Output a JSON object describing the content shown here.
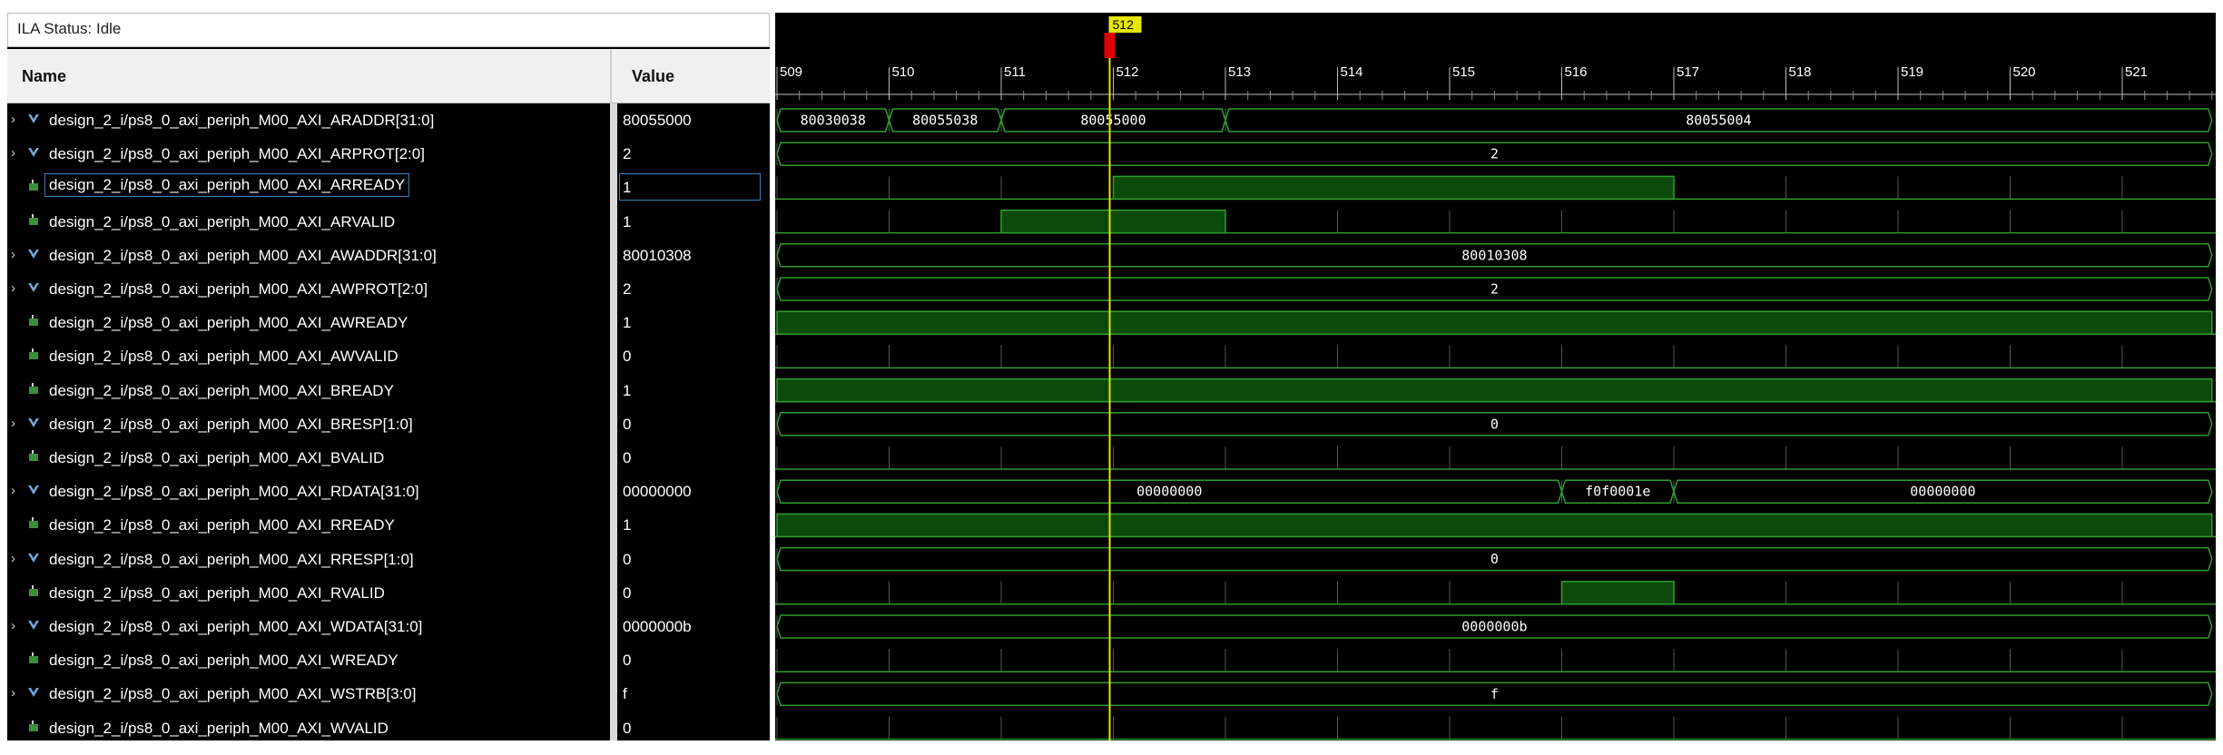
{
  "status": {
    "label": "ILA Status:",
    "value": "Idle"
  },
  "columns": {
    "name": "Name",
    "value": "Value"
  },
  "colors": {
    "signal": "#2e9e2e",
    "high_fill": "#0c4a0c",
    "cursor": "#e6e600",
    "marker": "#e00000",
    "grid": "#555555"
  },
  "cursor": {
    "label": "512",
    "position": 512
  },
  "timeline": {
    "start": 509,
    "end": 521.8,
    "ticks": [
      509,
      510,
      511,
      512,
      513,
      514,
      515,
      516,
      517,
      518,
      519,
      520,
      521
    ]
  },
  "signals": [
    {
      "name": "design_2_i/ps8_0_axi_periph_M00_AXI_ARADDR[31:0]",
      "value": "80055000",
      "type": "bus",
      "expandable": true,
      "icon": "bus-icon",
      "segments": [
        {
          "from": 509,
          "to": 510,
          "label": "80030038"
        },
        {
          "from": 510,
          "to": 511,
          "label": "80055038"
        },
        {
          "from": 511,
          "to": 513,
          "label": "80055000"
        },
        {
          "from": 513,
          "to": 521.8,
          "label": "80055004"
        }
      ]
    },
    {
      "name": "design_2_i/ps8_0_axi_periph_M00_AXI_ARPROT[2:0]",
      "value": "2",
      "type": "bus",
      "expandable": true,
      "icon": "bus-icon",
      "segments": [
        {
          "from": 509,
          "to": 521.8,
          "label": "2"
        }
      ]
    },
    {
      "name": "design_2_i/ps8_0_axi_periph_M00_AXI_ARREADY",
      "value": "1",
      "type": "bit",
      "expandable": false,
      "icon": "bit-icon",
      "selected": true,
      "high": [
        [
          512,
          517
        ]
      ]
    },
    {
      "name": "design_2_i/ps8_0_axi_periph_M00_AXI_ARVALID",
      "value": "1",
      "type": "bit",
      "expandable": false,
      "icon": "bit-icon",
      "high": [
        [
          511,
          513
        ]
      ]
    },
    {
      "name": "design_2_i/ps8_0_axi_periph_M00_AXI_AWADDR[31:0]",
      "value": "80010308",
      "type": "bus",
      "expandable": true,
      "icon": "bus-icon",
      "segments": [
        {
          "from": 509,
          "to": 521.8,
          "label": "80010308"
        }
      ]
    },
    {
      "name": "design_2_i/ps8_0_axi_periph_M00_AXI_AWPROT[2:0]",
      "value": "2",
      "type": "bus",
      "expandable": true,
      "icon": "bus-icon",
      "segments": [
        {
          "from": 509,
          "to": 521.8,
          "label": "2"
        }
      ]
    },
    {
      "name": "design_2_i/ps8_0_axi_periph_M00_AXI_AWREADY",
      "value": "1",
      "type": "bit",
      "expandable": false,
      "icon": "bit-icon",
      "high": [
        [
          509,
          521.8
        ]
      ]
    },
    {
      "name": "design_2_i/ps8_0_axi_periph_M00_AXI_AWVALID",
      "value": "0",
      "type": "bit",
      "expandable": false,
      "icon": "bit-icon",
      "high": []
    },
    {
      "name": "design_2_i/ps8_0_axi_periph_M00_AXI_BREADY",
      "value": "1",
      "type": "bit",
      "expandable": false,
      "icon": "bit-icon",
      "high": [
        [
          509,
          521.8
        ]
      ]
    },
    {
      "name": "design_2_i/ps8_0_axi_periph_M00_AXI_BRESP[1:0]",
      "value": "0",
      "type": "bus",
      "expandable": true,
      "icon": "bus-icon",
      "segments": [
        {
          "from": 509,
          "to": 521.8,
          "label": "0"
        }
      ]
    },
    {
      "name": "design_2_i/ps8_0_axi_periph_M00_AXI_BVALID",
      "value": "0",
      "type": "bit",
      "expandable": false,
      "icon": "bit-icon",
      "high": []
    },
    {
      "name": "design_2_i/ps8_0_axi_periph_M00_AXI_RDATA[31:0]",
      "value": "00000000",
      "type": "bus",
      "expandable": true,
      "icon": "bus-icon",
      "segments": [
        {
          "from": 509,
          "to": 516,
          "label": "00000000"
        },
        {
          "from": 516,
          "to": 517,
          "label": "f0f0001e"
        },
        {
          "from": 517,
          "to": 521.8,
          "label": "00000000"
        }
      ]
    },
    {
      "name": "design_2_i/ps8_0_axi_periph_M00_AXI_RREADY",
      "value": "1",
      "type": "bit",
      "expandable": false,
      "icon": "bit-icon",
      "high": [
        [
          509,
          521.8
        ]
      ]
    },
    {
      "name": "design_2_i/ps8_0_axi_periph_M00_AXI_RRESP[1:0]",
      "value": "0",
      "type": "bus",
      "expandable": true,
      "icon": "bus-icon",
      "segments": [
        {
          "from": 509,
          "to": 521.8,
          "label": "0"
        }
      ]
    },
    {
      "name": "design_2_i/ps8_0_axi_periph_M00_AXI_RVALID",
      "value": "0",
      "type": "bit",
      "expandable": false,
      "icon": "bit-icon",
      "high": [
        [
          516,
          517
        ]
      ]
    },
    {
      "name": "design_2_i/ps8_0_axi_periph_M00_AXI_WDATA[31:0]",
      "value": "0000000b",
      "type": "bus",
      "expandable": true,
      "icon": "bus-icon",
      "segments": [
        {
          "from": 509,
          "to": 521.8,
          "label": "0000000b"
        }
      ]
    },
    {
      "name": "design_2_i/ps8_0_axi_periph_M00_AXI_WREADY",
      "value": "0",
      "type": "bit",
      "expandable": false,
      "icon": "bit-icon",
      "high": []
    },
    {
      "name": "design_2_i/ps8_0_axi_periph_M00_AXI_WSTRB[3:0]",
      "value": "f",
      "type": "bus",
      "expandable": true,
      "icon": "bus-icon",
      "segments": [
        {
          "from": 509,
          "to": 521.8,
          "label": "f"
        }
      ]
    },
    {
      "name": "design_2_i/ps8_0_axi_periph_M00_AXI_WVALID",
      "value": "0",
      "type": "bit",
      "expandable": false,
      "icon": "bit-icon",
      "high": []
    }
  ]
}
